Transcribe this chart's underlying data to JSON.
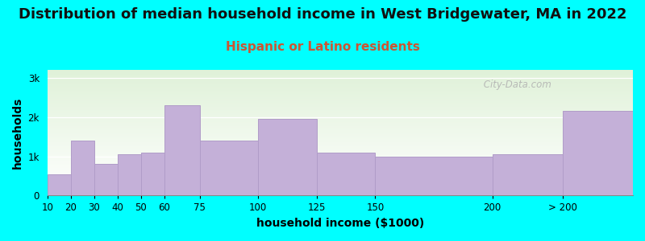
{
  "title": "Distribution of median household income in West Bridgewater, MA in 2022",
  "subtitle": "Hispanic or Latino residents",
  "xlabel": "household income ($1000)",
  "ylabel": "households",
  "background_outer": "#00FFFF",
  "background_inner_top": "#dff0d8",
  "background_inner_bottom": "#ffffff",
  "bar_color": "#c4b0d8",
  "bar_edge_color": "#b09cc8",
  "bin_edges": [
    10,
    20,
    30,
    40,
    50,
    60,
    75,
    100,
    125,
    150,
    200,
    230,
    260
  ],
  "bin_labels": [
    "10",
    "20",
    "30",
    "40",
    "50",
    "60",
    "75",
    "100",
    "125",
    "150",
    "200",
    "> 200"
  ],
  "values": [
    550,
    1400,
    800,
    1050,
    1100,
    2300,
    1400,
    1950,
    1100,
    1000,
    1050,
    2150
  ],
  "yticks": [
    0,
    1000,
    2000,
    3000
  ],
  "ytick_labels": [
    "0",
    "1k",
    "2k",
    "3k"
  ],
  "ylim": [
    0,
    3200
  ],
  "watermark": " City-Data.com",
  "title_fontsize": 13,
  "subtitle_fontsize": 11,
  "subtitle_color": "#cc5533",
  "axis_label_fontsize": 10,
  "tick_fontsize": 8.5,
  "title_color": "#111111"
}
